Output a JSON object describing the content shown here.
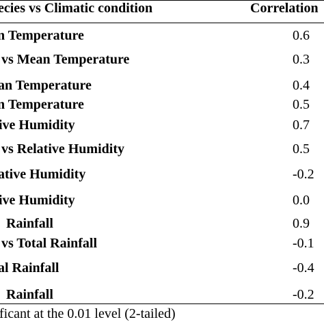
{
  "table": {
    "header": {
      "left": "ecies vs Climatic condition",
      "right": "Correlation"
    },
    "rows": [
      {
        "label": "n Temperature",
        "value": "0.6"
      },
      {
        "label": "vs Mean Temperature",
        "value": "0.3"
      },
      {
        "label": "an Temperature",
        "value": "0.4"
      },
      {
        "label": "n Temperature",
        "value": "0.5"
      },
      {
        "label": "ive Humidity",
        "value": "0.7"
      },
      {
        "label": "vs Relative Humidity",
        "value": "0.5"
      },
      {
        "label": "ative Humidity",
        "value": "-0.2"
      },
      {
        "label": "ive Humidity",
        "value": "0.0"
      },
      {
        "label": "Rainfall",
        "value": "0.9"
      },
      {
        "label": "vs Total Rainfall",
        "value": "-0.1"
      },
      {
        "label": "al Rainfall",
        "value": "-0.4"
      },
      {
        "label": "Rainfall",
        "value": "-0.2"
      }
    ],
    "footnote": "ficant at the 0.01 level (2-tailed)"
  }
}
